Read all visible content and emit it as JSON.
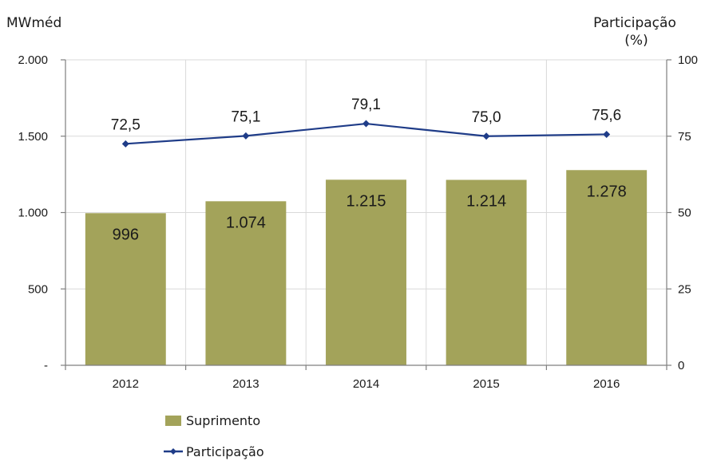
{
  "chart_data": {
    "type": "bar",
    "categories": [
      "2012",
      "2013",
      "2014",
      "2015",
      "2016"
    ],
    "series": [
      {
        "name": "Suprimento",
        "type": "bar",
        "axis": "left",
        "values": [
          996,
          1074,
          1215,
          1214,
          1278
        ],
        "value_labels": [
          "996",
          "1.074",
          "1.215",
          "1.214",
          "1.278"
        ],
        "color": "#a3a35a"
      },
      {
        "name": "Participação",
        "type": "line",
        "axis": "right",
        "values": [
          72.5,
          75.1,
          79.1,
          75.0,
          75.6
        ],
        "value_labels": [
          "72,5",
          "75,1",
          "79,1",
          "75,0",
          "75,6"
        ],
        "color": "#1f3c88"
      }
    ],
    "ylabel_left": "MWméd",
    "ylabel_right_line1": "Participação",
    "ylabel_right_line2": "(%)",
    "ylim_left": [
      0,
      2000
    ],
    "ylim_right": [
      0,
      100
    ],
    "yticks_left": [
      0,
      500,
      1000,
      1500,
      2000
    ],
    "ytick_labels_left": [
      "-",
      "500",
      "1.000",
      "1.500",
      "2.000"
    ],
    "yticks_right": [
      0,
      25,
      50,
      75,
      100
    ],
    "ytick_labels_right": [
      "0",
      "25",
      "50",
      "75",
      "100"
    ],
    "grid": true,
    "legend_position": "bottom-left"
  }
}
